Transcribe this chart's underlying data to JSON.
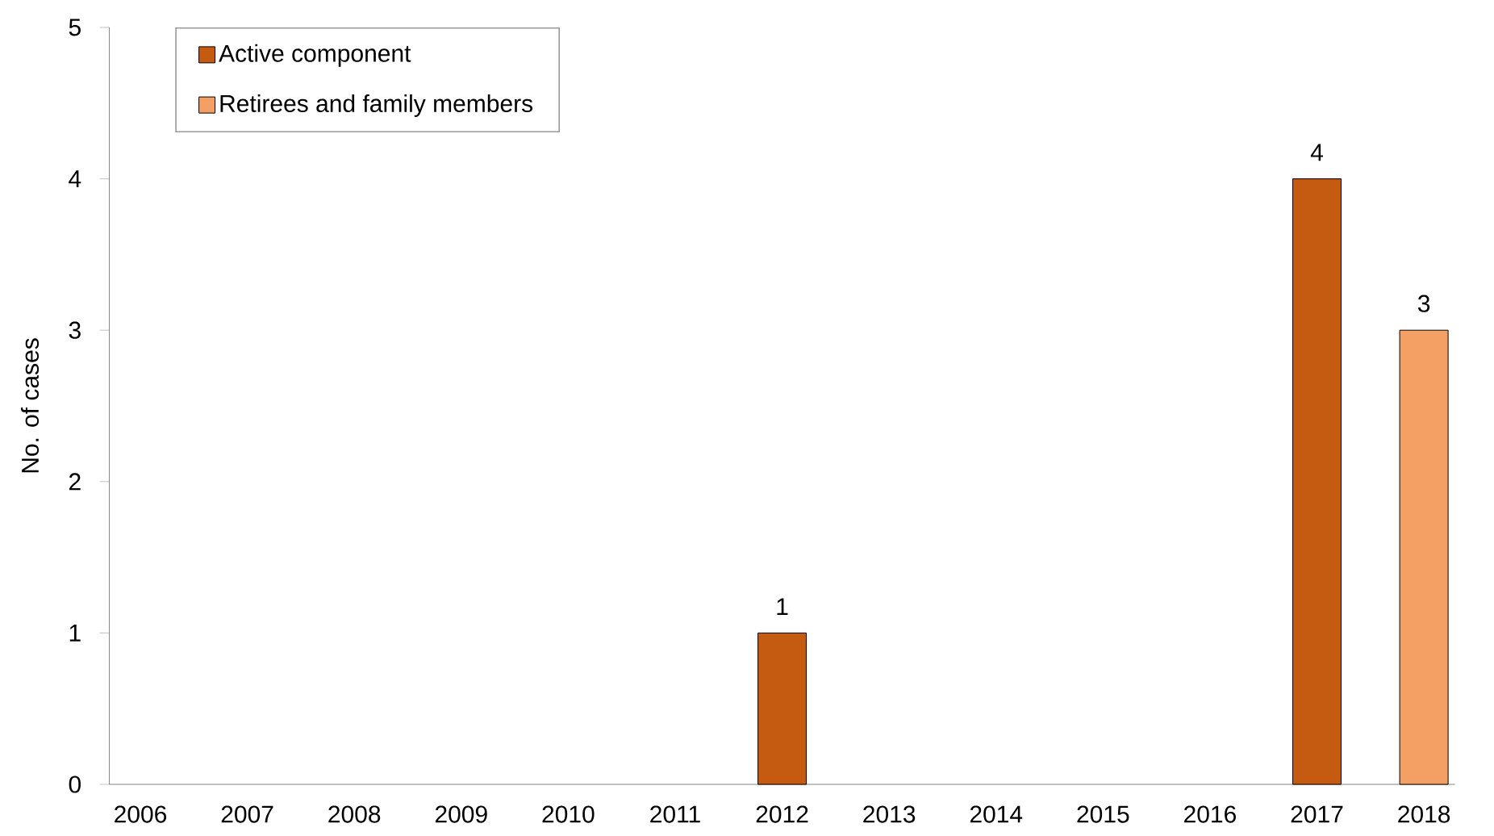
{
  "chart_data": {
    "type": "bar",
    "stacked": true,
    "ylabel": "No. of cases",
    "categories": [
      "2006",
      "2007",
      "2008",
      "2009",
      "2010",
      "2011",
      "2012",
      "2013",
      "2014",
      "2015",
      "2016",
      "2017",
      "2018"
    ],
    "series": [
      {
        "name": "Active component",
        "color": "#c55a11",
        "values": [
          0,
          0,
          0,
          0,
          0,
          0,
          1,
          0,
          0,
          0,
          0,
          4,
          0
        ],
        "value_labels": [
          null,
          null,
          null,
          null,
          null,
          null,
          "1",
          null,
          null,
          null,
          null,
          "4",
          null
        ]
      },
      {
        "name": "Retirees and family members",
        "color": "#f4a064",
        "values": [
          0,
          0,
          0,
          0,
          0,
          0,
          0,
          0,
          0,
          0,
          0,
          0,
          3
        ],
        "value_labels": [
          null,
          null,
          null,
          null,
          null,
          null,
          null,
          null,
          null,
          null,
          null,
          null,
          "3"
        ]
      }
    ],
    "ylim": [
      0,
      5
    ],
    "yticks": [
      0,
      1,
      2,
      3,
      4,
      5
    ],
    "legend": "top left"
  }
}
